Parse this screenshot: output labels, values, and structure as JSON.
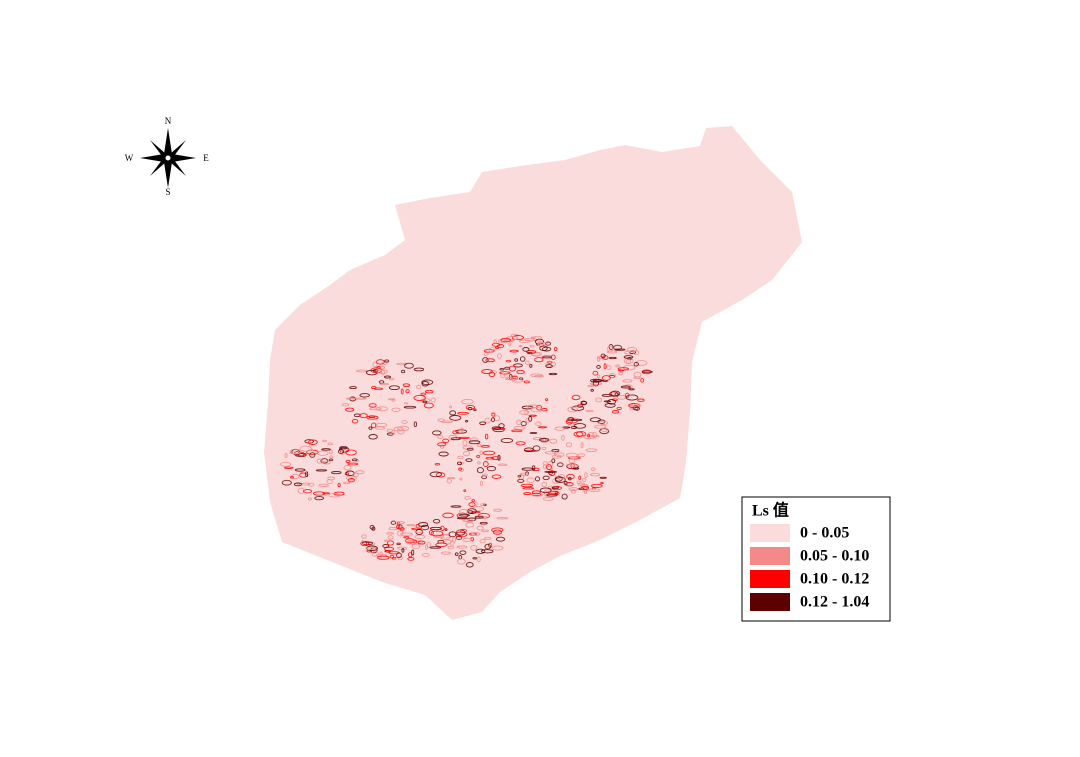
{
  "compass": {
    "north": "N",
    "south": "S",
    "east": "E",
    "west": "W"
  },
  "legend": {
    "title": "Ls 值",
    "items": [
      {
        "label": "0 - 0.05",
        "color": "#fbdcdc"
      },
      {
        "label": "0.05 - 0.10",
        "color": "#f28a8a"
      },
      {
        "label": "0.10 - 0.12",
        "color": "#ff0000"
      },
      {
        "label": "0.12 - 1.04",
        "color": "#5c0000"
      }
    ]
  }
}
